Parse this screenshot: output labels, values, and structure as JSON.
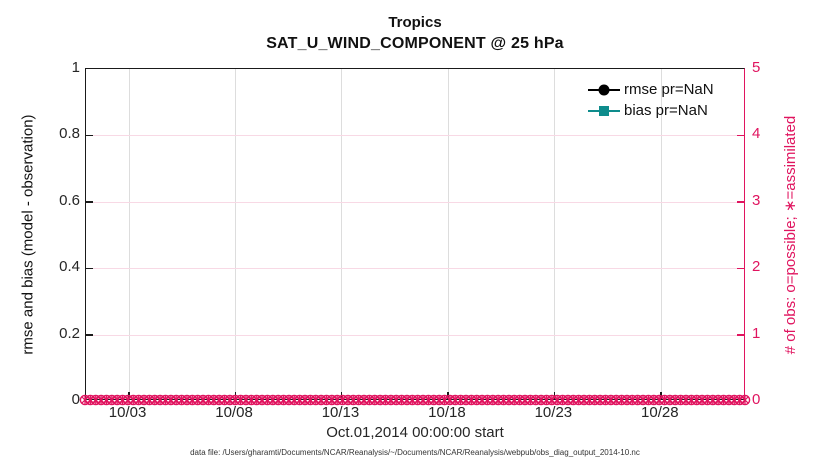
{
  "title": {
    "line1": "Tropics",
    "line2": "SAT_U_WIND_COMPONENT @ 25 hPa"
  },
  "legend": {
    "items": [
      {
        "label": "rmse pr=NaN",
        "color": "#000000",
        "marker": "filled-circle"
      },
      {
        "label": "bias pr=NaN",
        "color": "#0e8c8c",
        "marker": "filled-square"
      }
    ]
  },
  "footer": {
    "data_file_note": "data file: /Users/gharamti/Documents/NCAR/Reanalysis/~/Documents/NCAR/Reanalysis/webpub/obs_diag_output_2014-10.nc"
  },
  "colors": {
    "obs_pink": "#e0145f",
    "grid_pink": "#f8d9e5",
    "grid_gray": "#dddddd",
    "bias_teal": "#0e8c8c",
    "rmse_black": "#000000"
  },
  "chart_data": {
    "type": "line",
    "title": "Tropics",
    "subtitle": "SAT_U_WIND_COMPONENT @ 25 hPa",
    "xlabel": "Oct.01,2014 00:00:00 start",
    "ylabel_left": "rmse and bias (model - observation)",
    "ylabel_right": "# of obs: o=possible; ∗=assimilated",
    "x_axis": {
      "start": "2014-10-01 00:00:00",
      "end": "2014-11-01 00:00:00",
      "span_days": 31
    },
    "x_ticks": [
      {
        "label": "10/03",
        "day_offset": 2
      },
      {
        "label": "10/08",
        "day_offset": 7
      },
      {
        "label": "10/13",
        "day_offset": 12
      },
      {
        "label": "10/18",
        "day_offset": 17
      },
      {
        "label": "10/23",
        "day_offset": 22
      },
      {
        "label": "10/28",
        "day_offset": 27
      }
    ],
    "ylim_left": [
      0,
      1
    ],
    "y_ticks_left": [
      "0",
      "0.2",
      "0.4",
      "0.6",
      "0.8",
      "1"
    ],
    "ylim_right": [
      0,
      5
    ],
    "y_ticks_right": [
      "0",
      "1",
      "2",
      "3",
      "4",
      "5"
    ],
    "grid": {
      "horizontal": true,
      "vertical": true
    },
    "legend_position": "top-right-inside",
    "series": [
      {
        "name": "rmse pr=NaN",
        "axis": "left",
        "color": "#000000",
        "marker": "filled-circle",
        "values_constant": "NaN",
        "plotted": false
      },
      {
        "name": "bias pr=NaN",
        "axis": "left",
        "color": "#0e8c8c",
        "marker": "filled-square",
        "values_constant": "NaN",
        "plotted": false
      },
      {
        "name": "# of obs possible (o)",
        "axis": "right",
        "color": "#e0145f",
        "marker": "open-circle",
        "values_constant": 0,
        "n_points": 124
      },
      {
        "name": "# of obs assimilated (∗)",
        "axis": "right",
        "color": "#e0145f",
        "marker": "asterisk",
        "values_constant": 0,
        "n_points": 124
      }
    ]
  }
}
